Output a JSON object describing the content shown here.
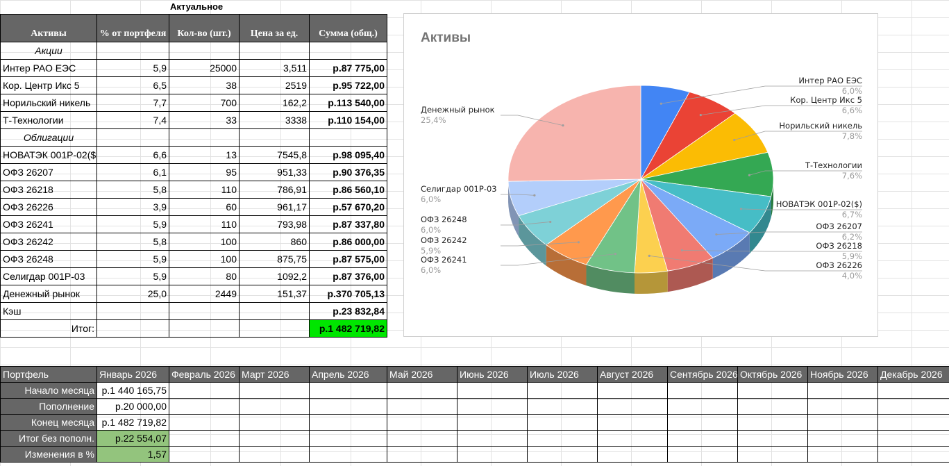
{
  "sheet": {
    "column_label": "Актуальное",
    "headers": [
      "Активы",
      "% от портфеля",
      "Кол-во (шт.)",
      "Цена за ед.",
      "Сумма (общ.)"
    ],
    "rows": [
      {
        "type": "section",
        "name": "Акции"
      },
      {
        "type": "asset",
        "name": "Интер РАО ЕЭС",
        "pct": "5,9",
        "qty": "25000",
        "price": "3,511",
        "sum": "р.87 775,00"
      },
      {
        "type": "asset",
        "name": "Кор. Центр Икс 5",
        "pct": "6,5",
        "qty": "38",
        "price": "2519",
        "sum": "р.95 722,00"
      },
      {
        "type": "asset",
        "name": "Норильский никель",
        "pct": "7,7",
        "qty": "700",
        "price": "162,2",
        "sum": "р.113 540,00"
      },
      {
        "type": "asset",
        "name": "Т-Технологии",
        "pct": "7,4",
        "qty": "33",
        "price": "3338",
        "sum": "р.110 154,00"
      },
      {
        "type": "section",
        "name": "Облигации"
      },
      {
        "type": "asset",
        "name": "НОВАТЭК 001Р-02($",
        "pct": "6,6",
        "qty": "13",
        "price": "7545,8",
        "sum": "р.98 095,40"
      },
      {
        "type": "asset",
        "name": "ОФЗ 26207",
        "pct": "6,1",
        "qty": "95",
        "price": "951,33",
        "sum": "р.90 376,35"
      },
      {
        "type": "asset",
        "name": "ОФЗ 26218",
        "pct": "5,8",
        "qty": "110",
        "price": "786,91",
        "sum": "р.86 560,10"
      },
      {
        "type": "asset",
        "name": "ОФЗ 26226",
        "pct": "3,9",
        "qty": "60",
        "price": "961,17",
        "sum": "р.57 670,20"
      },
      {
        "type": "asset",
        "name": "ОФЗ 26241",
        "pct": "5,9",
        "qty": "110",
        "price": "793,98",
        "sum": "р.87 337,80"
      },
      {
        "type": "asset",
        "name": "ОФЗ 26242",
        "pct": "5,8",
        "qty": "100",
        "price": "860",
        "sum": "р.86 000,00"
      },
      {
        "type": "asset",
        "name": "ОФЗ 26248",
        "pct": "5,9",
        "qty": "100",
        "price": "875,75",
        "sum": "р.87 575,00"
      },
      {
        "type": "asset",
        "name": "Селигдар 001Р-03",
        "pct": "5,9",
        "qty": "80",
        "price": "1092,2",
        "sum": "р.87 376,00"
      },
      {
        "type": "asset",
        "name": "Денежный рынок",
        "pct": "25,0",
        "qty": "2449",
        "price": "151,37",
        "sum": "р.370 705,13"
      },
      {
        "type": "asset",
        "name": "Кэш",
        "pct": "",
        "qty": "",
        "price": "",
        "sum": "р.23 832,84"
      }
    ],
    "total_label": "Итог:",
    "total_value": "р.1 482 719,82",
    "total_color": "#00e600"
  },
  "chart_data": {
    "type": "pie",
    "title": "Активы",
    "style": "3d",
    "slices": [
      {
        "label": "Интер РАО ЕЭС",
        "pct_label": "6,0%",
        "value": 6.0,
        "color": "#4285f4"
      },
      {
        "label": "Кор. Центр Икс 5",
        "pct_label": "6,6%",
        "value": 6.6,
        "color": "#ea4335"
      },
      {
        "label": "Норильский никель",
        "pct_label": "7,8%",
        "value": 7.8,
        "color": "#fbbc04"
      },
      {
        "label": "Т-Технологии",
        "pct_label": "7,6%",
        "value": 7.6,
        "color": "#34a853"
      },
      {
        "label": "НОВАТЭК 001Р-02($)",
        "pct_label": "6,7%",
        "value": 6.7,
        "color": "#46bdc6"
      },
      {
        "label": "ОФЗ 26207",
        "pct_label": "6,2%",
        "value": 6.2,
        "color": "#7baaf7"
      },
      {
        "label": "ОФЗ 26218",
        "pct_label": "5,9%",
        "value": 5.9,
        "color": "#f07b72"
      },
      {
        "label": "ОФЗ 26226",
        "pct_label": "4,0%",
        "value": 4.0,
        "color": "#fcd04f"
      },
      {
        "label": "ОФЗ 26241",
        "pct_label": "6,0%",
        "value": 6.0,
        "color": "#71c287"
      },
      {
        "label": "ОФЗ 26242",
        "pct_label": "5,9%",
        "value": 5.9,
        "color": "#ff994d"
      },
      {
        "label": "ОФЗ 26248",
        "pct_label": "6,0%",
        "value": 6.0,
        "color": "#7ed1d7"
      },
      {
        "label": "Селигдар 001Р-03",
        "pct_label": "6,0%",
        "value": 6.0,
        "color": "#b3cefb"
      },
      {
        "label": "Денежный рынок",
        "pct_label": "25,4%",
        "value": 25.4,
        "color": "#f7b4ae"
      }
    ]
  },
  "portfolio": {
    "header_label": "Портфель",
    "months": [
      "Январь 2026",
      "Февраль 2026",
      "Март 2026",
      "Апрель 2026",
      "Май 2026",
      "Июнь 2026",
      "Июль 2026",
      "Август 2026",
      "Сентябрь 2026",
      "Октябрь 2026",
      "Ноябрь 2026",
      "Декабрь 2026"
    ],
    "rows": [
      {
        "label": "Начало месяца",
        "jan": "р.1 440 165,75"
      },
      {
        "label": "Пополнение",
        "jan": "р.20 000,00"
      },
      {
        "label": "Конец месяца",
        "jan": "р.1 482 719,82"
      },
      {
        "label": "Итог без пополн.",
        "jan": "р.22 554,07",
        "highlight": true
      },
      {
        "label": "Изменения в %",
        "jan": "1,57",
        "highlight": true
      }
    ],
    "highlight_color": "#93c47d"
  }
}
